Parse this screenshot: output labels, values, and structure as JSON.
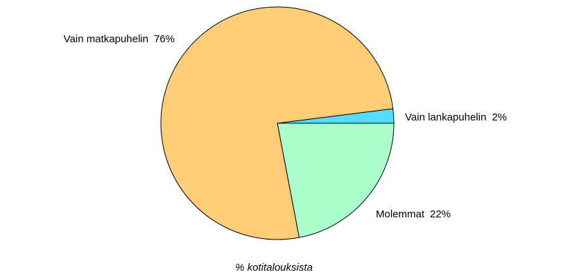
{
  "chart_data": {
    "type": "pie",
    "caption": "% kotitalouksista",
    "categories": [
      "Vain lankapuhelin",
      "Vain matkapuhelin",
      "Molemmat"
    ],
    "values": [
      2,
      76,
      22
    ],
    "value_labels": [
      "2%",
      "76%",
      "22%"
    ],
    "colors": [
      "#55ddff",
      "#ffcc77",
      "#aaffcc"
    ]
  }
}
